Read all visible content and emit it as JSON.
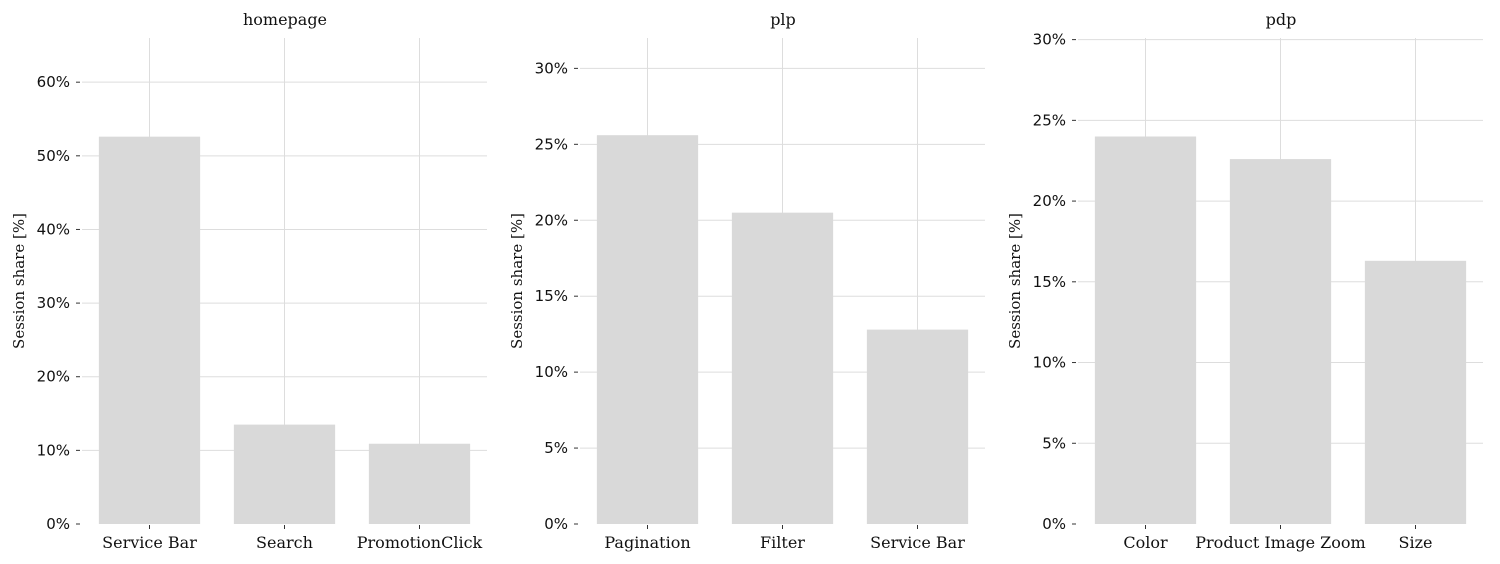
{
  "chart_data": [
    {
      "type": "bar",
      "title": "homepage",
      "categories": [
        "Service Bar",
        "Search",
        "PromotionClick"
      ],
      "values": [
        52.6,
        13.5,
        10.9
      ],
      "xlabel": "",
      "ylabel": "Session share [%]",
      "ylim": [
        0,
        66
      ],
      "yticks": [
        0,
        10,
        20,
        30,
        40,
        50,
        60
      ],
      "ytick_labels": [
        "0%",
        "10%",
        "20%",
        "30%",
        "40%",
        "50%",
        "60%"
      ],
      "grid": true,
      "bar_color": "#d9d9d9"
    },
    {
      "type": "bar",
      "title": "plp",
      "categories": [
        "Pagination",
        "Filter",
        "Service Bar"
      ],
      "values": [
        25.6,
        20.5,
        12.8
      ],
      "xlabel": "",
      "ylabel": "Session share [%]",
      "ylim": [
        0,
        32
      ],
      "yticks": [
        0,
        5,
        10,
        15,
        20,
        25,
        30
      ],
      "ytick_labels": [
        "0%",
        "5%",
        "10%",
        "15%",
        "20%",
        "25%",
        "30%"
      ],
      "grid": true,
      "bar_color": "#d9d9d9"
    },
    {
      "type": "bar",
      "title": "pdp",
      "categories": [
        "Color",
        "Product Image Zoom",
        "Size"
      ],
      "values": [
        24.0,
        22.6,
        16.3
      ],
      "xlabel": "",
      "ylabel": "Session share [%]",
      "ylim": [
        0,
        30.1
      ],
      "yticks": [
        0,
        5,
        10,
        15,
        20,
        25,
        30
      ],
      "ytick_labels": [
        "0%",
        "5%",
        "10%",
        "15%",
        "20%",
        "25%",
        "30%"
      ],
      "grid": true,
      "bar_color": "#d9d9d9"
    }
  ]
}
